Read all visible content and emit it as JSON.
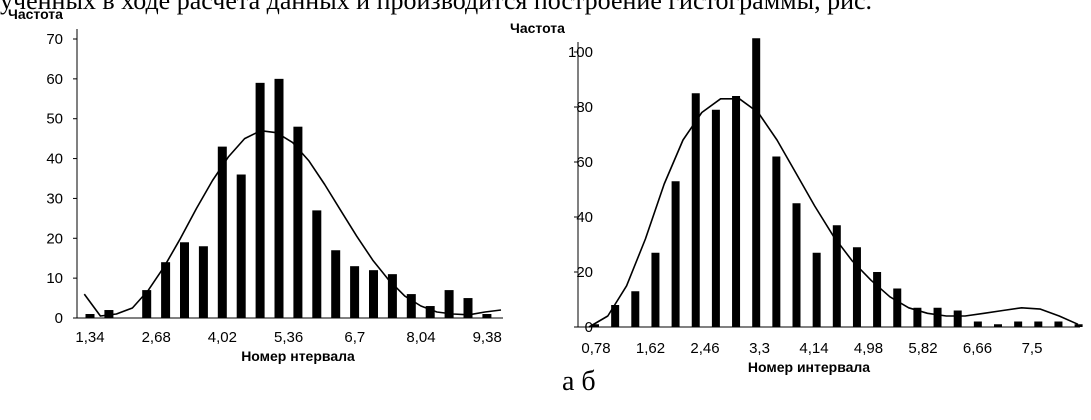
{
  "page": {
    "top_text": "учeнных в ходе расчета данных и производится построение гистограммы, рис.",
    "caption": "а б"
  },
  "chart_data": [
    {
      "type": "bar",
      "ylabel": "Частота",
      "xlabel": "Номер нтервала",
      "ylim": [
        0,
        70
      ],
      "yticks": [
        "0",
        "10",
        "20",
        "30",
        "40",
        "50",
        "60",
        "70"
      ],
      "xtick_labels": [
        "1,34",
        "2,68",
        "4,02",
        "5,36",
        "6,7",
        "8,04",
        "9,38"
      ],
      "values": [
        1,
        2,
        0,
        7,
        14,
        19,
        18,
        43,
        36,
        59,
        60,
        48,
        27,
        17,
        13,
        12,
        11,
        6,
        3,
        7,
        5,
        1
      ],
      "curve": [
        6,
        0.5,
        1,
        2.5,
        7,
        13,
        20,
        27.5,
        34.5,
        40.5,
        45,
        47,
        46.5,
        44,
        39.5,
        33.5,
        27,
        20.5,
        14.5,
        9.5,
        5.5,
        3,
        1.5,
        1,
        0.8,
        1.5,
        2
      ]
    },
    {
      "type": "bar",
      "ylabel": "Частота",
      "xlabel": "Номер интервала",
      "ylim": [
        0,
        100
      ],
      "yticks": [
        "0",
        "20",
        "40",
        "60",
        "80",
        "100"
      ],
      "xtick_labels": [
        "0,78",
        "1,62",
        "2,46",
        "3,3",
        "4,14",
        "4,98",
        "5,82",
        "6,66",
        "7,5"
      ],
      "values": [
        1,
        8,
        13,
        27,
        53,
        85,
        79,
        84,
        105,
        62,
        45,
        27,
        37,
        29,
        20,
        14,
        7,
        7,
        6,
        2,
        1,
        2,
        2,
        2,
        1
      ],
      "curve": [
        0,
        4,
        15,
        32,
        52,
        68,
        78,
        83,
        83,
        78,
        68,
        56,
        44,
        33,
        24,
        17,
        11,
        7,
        5,
        4,
        4,
        5,
        6,
        7,
        6.5,
        4,
        1
      ]
    }
  ]
}
